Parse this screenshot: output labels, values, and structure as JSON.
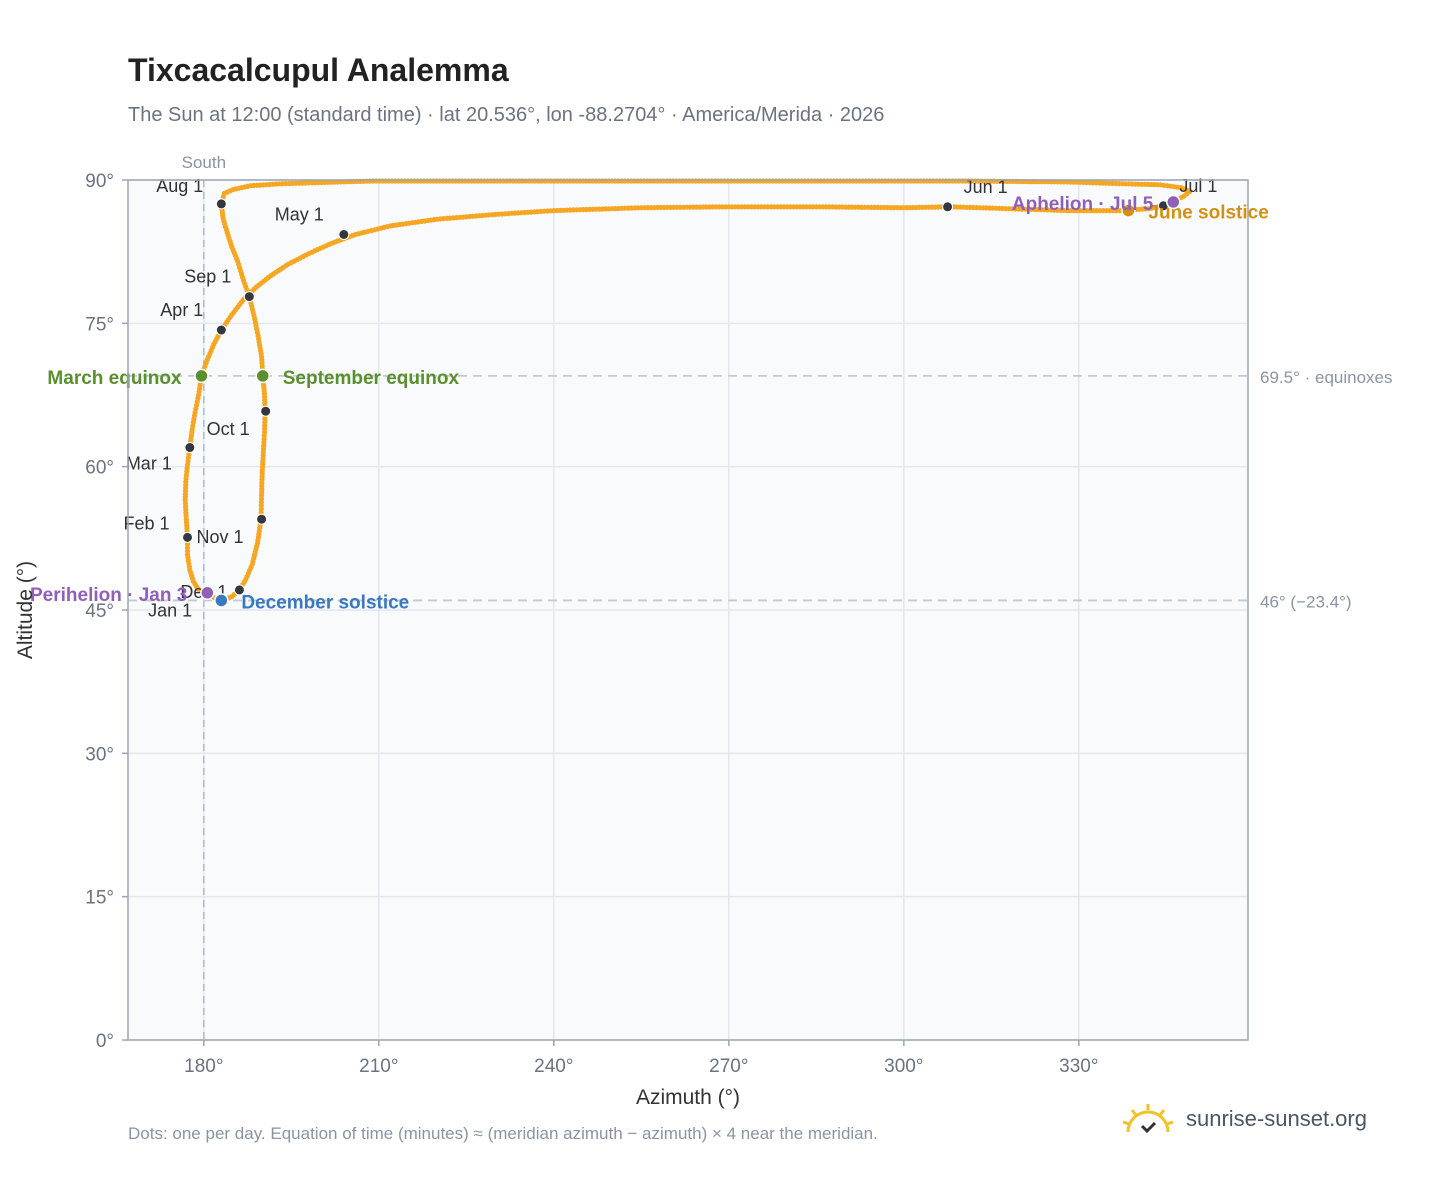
{
  "header": {
    "title": "Tixcacalcupul Analemma",
    "subtitle": "The Sun at 12:00 (standard time) · lat 20.536°, lon -88.2704° · America/Merida · 2026"
  },
  "footer": {
    "note": "Dots: one per day. Equation of time (minutes) ≈ (meridian azimuth − azimuth) × 4 near the meridian.",
    "brand": "sunrise-sunset.org"
  },
  "colors": {
    "path": "#f5a623",
    "month_marker": "#333840",
    "equinox": "#5a8f2e",
    "june_solstice": "#d4900f",
    "december_solstice": "#3a78c0",
    "apsis": "#8e60b8",
    "plot_bg": "#f8fafc",
    "grid": "#e3e8ee",
    "axis": "#9aa5b4"
  },
  "chart_data": {
    "type": "scatter",
    "title": "Tixcacalcupul Analemma",
    "xlabel": "Azimuth (°)",
    "ylabel": "Altitude (°)",
    "xlim": [
      167,
      359
    ],
    "ylim": [
      0,
      90
    ],
    "x_ticks": [
      180,
      210,
      240,
      270,
      300,
      330
    ],
    "x_tick_labels": [
      "180°",
      "210°",
      "240°",
      "270°",
      "300°",
      "330°"
    ],
    "y_ticks": [
      0,
      15,
      30,
      45,
      60,
      75,
      90
    ],
    "y_tick_labels": [
      "0°",
      "15°",
      "30°",
      "45°",
      "60°",
      "75°",
      "90°"
    ],
    "grid": true,
    "meridian": {
      "azimuth": 180,
      "label": "South"
    },
    "reference_lines": [
      {
        "altitude": 69.5,
        "label": "69.5° · equinoxes"
      },
      {
        "altitude": 46,
        "label": "46° (−23.4°)"
      }
    ],
    "path_points": [
      [
        180.3,
        46.8
      ],
      [
        179.0,
        47.2
      ],
      [
        178.2,
        48.0
      ],
      [
        177.6,
        49.2
      ],
      [
        177.2,
        50.8
      ],
      [
        177.2,
        52.6
      ],
      [
        177.0,
        54.5
      ],
      [
        176.8,
        56.5
      ],
      [
        176.9,
        58.4
      ],
      [
        177.2,
        60.2
      ],
      [
        177.6,
        62.0
      ],
      [
        178.0,
        63.9
      ],
      [
        178.5,
        65.7
      ],
      [
        179.1,
        67.5
      ],
      [
        179.6,
        69.5
      ],
      [
        180.6,
        71.2
      ],
      [
        181.7,
        72.8
      ],
      [
        183.0,
        74.3
      ],
      [
        184.8,
        75.9
      ],
      [
        186.8,
        77.5
      ],
      [
        189.0,
        78.8
      ],
      [
        191.5,
        80.0
      ],
      [
        194.5,
        81.2
      ],
      [
        198.0,
        82.3
      ],
      [
        202.0,
        83.4
      ],
      [
        206.0,
        84.3
      ],
      [
        212.0,
        85.2
      ],
      [
        220.0,
        85.9
      ],
      [
        230.0,
        86.4
      ],
      [
        240.0,
        86.8
      ],
      [
        255.0,
        87.1
      ],
      [
        270.0,
        87.2
      ],
      [
        285.0,
        87.2
      ],
      [
        300.0,
        87.1
      ],
      [
        308.0,
        87.2
      ],
      [
        318.0,
        87.0
      ],
      [
        328.0,
        86.8
      ],
      [
        337.0,
        86.8
      ],
      [
        342.0,
        87.0
      ],
      [
        344.5,
        87.3
      ],
      [
        346.0,
        87.7
      ],
      [
        348.0,
        88.3
      ],
      [
        349.0,
        88.8
      ],
      [
        347.5,
        89.2
      ],
      [
        344.0,
        89.5
      ],
      [
        338.0,
        89.6
      ],
      [
        328.0,
        89.8
      ],
      [
        310.0,
        89.9
      ],
      [
        277.0,
        89.9
      ],
      [
        245.0,
        89.9
      ],
      [
        209.0,
        89.9
      ],
      [
        193.0,
        89.6
      ],
      [
        188.0,
        89.4
      ],
      [
        185.0,
        89.0
      ],
      [
        183.5,
        88.6
      ],
      [
        183.0,
        87.5
      ],
      [
        183.3,
        86.0
      ],
      [
        184.0,
        84.5
      ],
      [
        184.8,
        83.0
      ],
      [
        185.8,
        81.5
      ],
      [
        186.8,
        79.5
      ],
      [
        187.8,
        77.8
      ],
      [
        188.6,
        75.8
      ],
      [
        189.3,
        73.7
      ],
      [
        189.9,
        71.5
      ],
      [
        190.1,
        69.5
      ],
      [
        190.4,
        67.6
      ],
      [
        190.5,
        65.7
      ],
      [
        190.4,
        63.6
      ],
      [
        190.2,
        61.5
      ],
      [
        190.0,
        59.3
      ],
      [
        189.9,
        57.0
      ],
      [
        189.8,
        54.5
      ],
      [
        189.2,
        52.0
      ],
      [
        188.3,
        49.8
      ],
      [
        187.2,
        48.2
      ],
      [
        186.1,
        47.1
      ],
      [
        184.8,
        46.4
      ],
      [
        183.3,
        46.0
      ],
      [
        181.8,
        46.3
      ],
      [
        180.3,
        46.8
      ]
    ],
    "month_markers": [
      {
        "label": "Jan 1",
        "x": 182.8,
        "y": 46.2
      },
      {
        "label": "Feb 1",
        "x": 177.2,
        "y": 52.6
      },
      {
        "label": "Mar 1",
        "x": 177.6,
        "y": 62.0
      },
      {
        "label": "Apr 1",
        "x": 183.0,
        "y": 74.3
      },
      {
        "label": "May 1",
        "x": 204.0,
        "y": 84.3
      },
      {
        "label": "Jun 1",
        "x": 307.5,
        "y": 87.2
      },
      {
        "label": "Jul 1",
        "x": 344.5,
        "y": 87.3
      },
      {
        "label": "Aug 1",
        "x": 183.0,
        "y": 87.5
      },
      {
        "label": "Sep 1",
        "x": 187.8,
        "y": 77.8
      },
      {
        "label": "Oct 1",
        "x": 190.6,
        "y": 65.8
      },
      {
        "label": "Nov 1",
        "x": 189.9,
        "y": 54.5
      },
      {
        "label": "Dec 1",
        "x": 186.1,
        "y": 47.1
      }
    ],
    "events": [
      {
        "label": "March equinox",
        "x": 179.6,
        "y": 69.5,
        "color": "#5a8f2e"
      },
      {
        "label": "September equinox",
        "x": 190.1,
        "y": 69.5,
        "color": "#5a8f2e"
      },
      {
        "label": "June solstice",
        "x": 338.5,
        "y": 86.8,
        "color": "#d4900f"
      },
      {
        "label": "December solstice",
        "x": 183.0,
        "y": 46.0,
        "color": "#3a78c0"
      },
      {
        "label": "Perihelion · Jan 3",
        "x": 180.6,
        "y": 46.8,
        "color": "#8e60b8"
      },
      {
        "label": "Aphelion · Jul 5",
        "x": 346.2,
        "y": 87.7,
        "color": "#8e60b8"
      }
    ]
  }
}
